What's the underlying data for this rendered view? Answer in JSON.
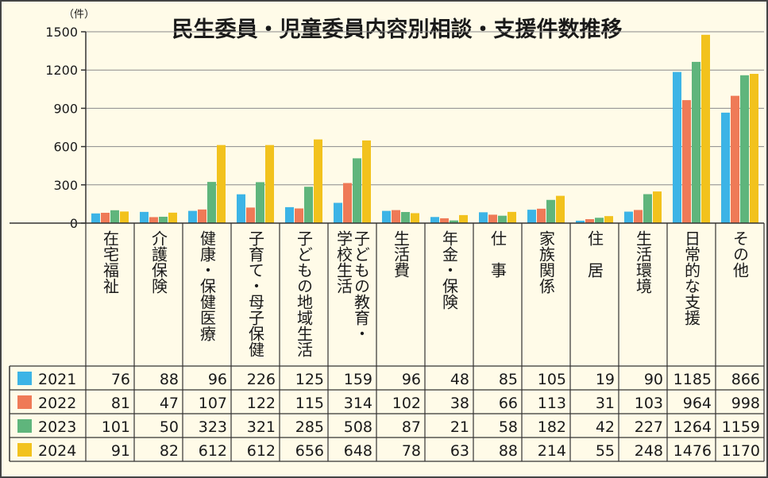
{
  "chart_data": {
    "type": "bar",
    "title": "民生委員・児童委員内容別相談・支援件数推移",
    "unit": "（件）",
    "ylim": [
      0,
      1500
    ],
    "yticks": [
      0,
      300,
      600,
      900,
      1200,
      1500
    ],
    "categories": [
      [
        "在宅福祉"
      ],
      [
        "介護保険"
      ],
      [
        "健康・保健医療"
      ],
      [
        "子育て・母子保健"
      ],
      [
        "子どもの地域生活"
      ],
      [
        "子どもの教育・",
        "学校生活"
      ],
      [
        "生活費"
      ],
      [
        "年金・保険"
      ],
      [
        "仕　事"
      ],
      [
        "家族関係"
      ],
      [
        "住　居"
      ],
      [
        "生活環境"
      ],
      [
        "日常的な支援"
      ],
      [
        "その他"
      ]
    ],
    "series": [
      {
        "name": "2021",
        "color": "#3cb4e6",
        "values": [
          76,
          88,
          96,
          226,
          125,
          159,
          96,
          48,
          85,
          105,
          19,
          90,
          1185,
          866
        ]
      },
      {
        "name": "2022",
        "color": "#ef7a57",
        "values": [
          81,
          47,
          107,
          122,
          115,
          314,
          102,
          38,
          66,
          113,
          31,
          103,
          964,
          998
        ]
      },
      {
        "name": "2023",
        "color": "#5fb57c",
        "values": [
          101,
          50,
          323,
          321,
          285,
          508,
          87,
          21,
          58,
          182,
          42,
          227,
          1264,
          1159
        ]
      },
      {
        "name": "2024",
        "color": "#f2c21d",
        "values": [
          91,
          82,
          612,
          612,
          656,
          648,
          78,
          63,
          88,
          214,
          55,
          248,
          1476,
          1170
        ]
      }
    ]
  }
}
